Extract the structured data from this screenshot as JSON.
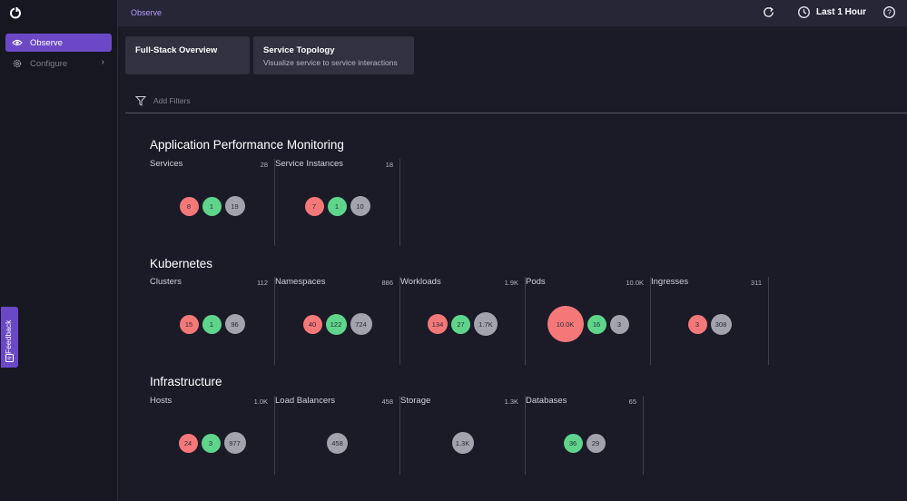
{
  "sidebar": {
    "logo": "product-logo",
    "items": [
      {
        "label": "Observe",
        "icon": "eye-icon",
        "active": true
      },
      {
        "label": "Configure",
        "icon": "gear-icon",
        "active": false
      }
    ]
  },
  "topbar": {
    "breadcrumb": "Observe",
    "time_range": "Last 1 Hour",
    "icons": [
      "refresh-icon",
      "clock-icon",
      "help-icon"
    ]
  },
  "tabs": [
    {
      "title": "Full-Stack Overview",
      "subtitle": ""
    },
    {
      "title": "Service Topology",
      "subtitle": "Visualize service to service interactions"
    }
  ],
  "filter": {
    "placeholder": "Add Filters"
  },
  "colors": {
    "accent": "#6b49c6",
    "red": "#f57879",
    "green": "#5fd58b",
    "grey": "#a3a3ad"
  },
  "sections": [
    {
      "title": "Application Performance Monitoring",
      "cards": [
        {
          "name": "Services",
          "total": "28",
          "bubbles": [
            {
              "value": "8",
              "color": "red"
            },
            {
              "value": "1",
              "color": "green"
            },
            {
              "value": "19",
              "color": "grey"
            }
          ]
        },
        {
          "name": "Service Instances",
          "total": "18",
          "bubbles": [
            {
              "value": "7",
              "color": "red"
            },
            {
              "value": "1",
              "color": "green"
            },
            {
              "value": "10",
              "color": "grey"
            }
          ]
        }
      ]
    },
    {
      "title": "Kubernetes",
      "cards": [
        {
          "name": "Clusters",
          "total": "112",
          "bubbles": [
            {
              "value": "15",
              "color": "red"
            },
            {
              "value": "1",
              "color": "green"
            },
            {
              "value": "96",
              "color": "grey"
            }
          ]
        },
        {
          "name": "Namespaces",
          "total": "886",
          "bubbles": [
            {
              "value": "40",
              "color": "red"
            },
            {
              "value": "122",
              "color": "green"
            },
            {
              "value": "724",
              "color": "grey"
            }
          ]
        },
        {
          "name": "Workloads",
          "total": "1.9K",
          "bubbles": [
            {
              "value": "134",
              "color": "red"
            },
            {
              "value": "27",
              "color": "green"
            },
            {
              "value": "1.7K",
              "color": "grey"
            }
          ]
        },
        {
          "name": "Pods",
          "total": "10.0K",
          "bubbles": [
            {
              "value": "10.0K",
              "color": "red"
            },
            {
              "value": "16",
              "color": "green"
            },
            {
              "value": "3",
              "color": "grey"
            }
          ]
        },
        {
          "name": "Ingresses",
          "total": "311",
          "bubbles": [
            {
              "value": "3",
              "color": "red"
            },
            {
              "value": "308",
              "color": "grey"
            }
          ]
        }
      ]
    },
    {
      "title": "Infrastructure",
      "cards": [
        {
          "name": "Hosts",
          "total": "1.0K",
          "bubbles": [
            {
              "value": "24",
              "color": "red"
            },
            {
              "value": "3",
              "color": "green"
            },
            {
              "value": "977",
              "color": "grey"
            }
          ]
        },
        {
          "name": "Load Balancers",
          "total": "458",
          "bubbles": [
            {
              "value": "458",
              "color": "grey"
            }
          ]
        },
        {
          "name": "Storage",
          "total": "1.3K",
          "bubbles": [
            {
              "value": "1.3K",
              "color": "grey"
            }
          ]
        },
        {
          "name": "Databases",
          "total": "65",
          "bubbles": [
            {
              "value": "36",
              "color": "green"
            },
            {
              "value": "29",
              "color": "grey"
            }
          ]
        }
      ]
    }
  ],
  "feedback": {
    "label": "Feedback"
  }
}
